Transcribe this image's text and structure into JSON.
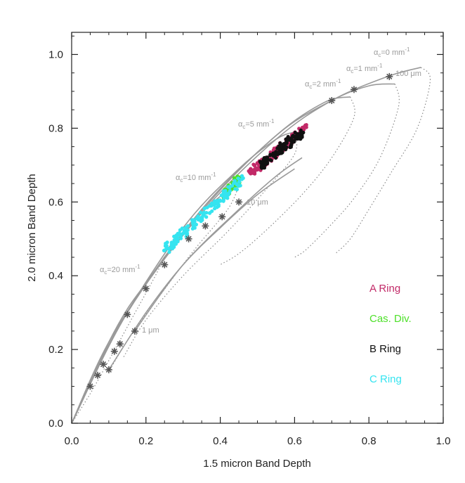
{
  "chart_data": {
    "type": "scatter",
    "title": "",
    "xlabel": "1.5 micron Band Depth",
    "ylabel": "2.0 micron Band Depth",
    "xlim": [
      0.0,
      1.0
    ],
    "ylim": [
      0.0,
      1.06
    ],
    "x_ticks": [
      "0.0",
      "0.2",
      "0.4",
      "0.6",
      "0.8",
      "1.0"
    ],
    "y_ticks": [
      "0.0",
      "0.2",
      "0.4",
      "0.6",
      "0.8",
      "1.0"
    ],
    "grain_size_markers": [
      {
        "x": 0.05,
        "y": 0.1
      },
      {
        "x": 0.07,
        "y": 0.13
      },
      {
        "x": 0.085,
        "y": 0.16
      },
      {
        "x": 0.1,
        "y": 0.145
      },
      {
        "x": 0.115,
        "y": 0.195
      },
      {
        "x": 0.13,
        "y": 0.215
      },
      {
        "x": 0.15,
        "y": 0.295
      },
      {
        "x": 0.17,
        "y": 0.25
      },
      {
        "x": 0.2,
        "y": 0.365
      },
      {
        "x": 0.25,
        "y": 0.43
      },
      {
        "x": 0.315,
        "y": 0.5
      },
      {
        "x": 0.36,
        "y": 0.535
      },
      {
        "x": 0.405,
        "y": 0.56
      },
      {
        "x": 0.45,
        "y": 0.6
      },
      {
        "x": 0.7,
        "y": 0.875
      },
      {
        "x": 0.76,
        "y": 0.905
      },
      {
        "x": 0.855,
        "y": 0.94
      }
    ],
    "model_curves": [
      {
        "name": "alpha_c=0",
        "style": "solid",
        "points": [
          [
            0,
            0
          ],
          [
            0.15,
            0.3
          ],
          [
            0.35,
            0.57
          ],
          [
            0.55,
            0.77
          ],
          [
            0.7,
            0.875
          ],
          [
            0.85,
            0.94
          ],
          [
            0.94,
            0.965
          ]
        ]
      },
      {
        "name": "alpha_c=0",
        "style": "dotted",
        "points": [
          [
            0.94,
            0.965
          ],
          [
            0.965,
            0.93
          ],
          [
            0.93,
            0.8
          ],
          [
            0.86,
            0.68
          ],
          [
            0.8,
            0.58
          ],
          [
            0.75,
            0.5
          ],
          [
            0.71,
            0.46
          ]
        ]
      },
      {
        "name": "alpha_c=1",
        "style": "solid",
        "points": [
          [
            0,
            0
          ],
          [
            0.15,
            0.3
          ],
          [
            0.35,
            0.575
          ],
          [
            0.55,
            0.78
          ],
          [
            0.7,
            0.875
          ],
          [
            0.8,
            0.915
          ],
          [
            0.87,
            0.92
          ]
        ]
      },
      {
        "name": "alpha_c=1",
        "style": "dotted",
        "points": [
          [
            0.87,
            0.92
          ],
          [
            0.88,
            0.86
          ],
          [
            0.83,
            0.72
          ],
          [
            0.76,
            0.61
          ],
          [
            0.69,
            0.53
          ],
          [
            0.63,
            0.47
          ],
          [
            0.6,
            0.45
          ]
        ]
      },
      {
        "name": "alpha_c=2",
        "style": "solid",
        "points": [
          [
            0,
            0
          ],
          [
            0.15,
            0.3
          ],
          [
            0.35,
            0.58
          ],
          [
            0.55,
            0.78
          ],
          [
            0.68,
            0.87
          ],
          [
            0.75,
            0.885
          ]
        ]
      },
      {
        "name": "alpha_c=2",
        "style": "dotted",
        "points": [
          [
            0.75,
            0.885
          ],
          [
            0.76,
            0.83
          ],
          [
            0.7,
            0.72
          ],
          [
            0.62,
            0.62
          ],
          [
            0.52,
            0.52
          ],
          [
            0.45,
            0.46
          ],
          [
            0.4,
            0.43
          ]
        ]
      },
      {
        "name": "alpha_c=5",
        "style": "solid",
        "points": [
          [
            0,
            0
          ],
          [
            0.12,
            0.25
          ],
          [
            0.3,
            0.53
          ],
          [
            0.45,
            0.69
          ],
          [
            0.55,
            0.77
          ],
          [
            0.6,
            0.79
          ]
        ]
      },
      {
        "name": "alpha_c=5",
        "style": "dotted",
        "points": [
          [
            0.6,
            0.79
          ],
          [
            0.6,
            0.73
          ],
          [
            0.52,
            0.63
          ],
          [
            0.42,
            0.52
          ],
          [
            0.3,
            0.4
          ],
          [
            0.2,
            0.28
          ],
          [
            0.14,
            0.18
          ]
        ]
      },
      {
        "name": "alpha_c=10",
        "style": "solid",
        "points": [
          [
            0,
            0
          ],
          [
            0.1,
            0.22
          ],
          [
            0.25,
            0.45
          ],
          [
            0.35,
            0.57
          ],
          [
            0.42,
            0.63
          ],
          [
            0.45,
            0.645
          ]
        ]
      },
      {
        "name": "alpha_c=10",
        "style": "dotted",
        "points": [
          [
            0.45,
            0.645
          ],
          [
            0.42,
            0.58
          ],
          [
            0.33,
            0.47
          ],
          [
            0.24,
            0.35
          ],
          [
            0.16,
            0.24
          ],
          [
            0.1,
            0.14
          ]
        ]
      },
      {
        "name": "alpha_c=20",
        "style": "solid",
        "points": [
          [
            0,
            0
          ],
          [
            0.05,
            0.11
          ],
          [
            0.1,
            0.22
          ],
          [
            0.15,
            0.31
          ],
          [
            0.2,
            0.38
          ],
          [
            0.25,
            0.45
          ]
        ]
      },
      {
        "name": "alpha_c=20",
        "style": "dotted",
        "points": [
          [
            0.25,
            0.45
          ],
          [
            0.22,
            0.39
          ],
          [
            0.16,
            0.28
          ],
          [
            0.1,
            0.17
          ],
          [
            0.05,
            0.08
          ],
          [
            0.0,
            0.0
          ]
        ]
      },
      {
        "name": "10um",
        "style": "solid",
        "points": [
          [
            0.1,
            0.145
          ],
          [
            0.2,
            0.3
          ],
          [
            0.3,
            0.43
          ],
          [
            0.4,
            0.53
          ],
          [
            0.5,
            0.62
          ],
          [
            0.6,
            0.69
          ]
        ]
      },
      {
        "name": "100um",
        "style": "solid",
        "points": [
          [
            0.17,
            0.25
          ],
          [
            0.3,
            0.43
          ],
          [
            0.45,
            0.58
          ],
          [
            0.55,
            0.67
          ],
          [
            0.62,
            0.72
          ]
        ]
      }
    ],
    "series": [
      {
        "name": "A Ring",
        "color": "#c22a68",
        "x_range": [
          0.48,
          0.63
        ],
        "y_range": [
          0.68,
          0.8
        ]
      },
      {
        "name": "Cas. Div.",
        "color": "#4ee02a",
        "x_range": [
          0.41,
          0.45
        ],
        "y_range": [
          0.62,
          0.66
        ]
      },
      {
        "name": "B Ring",
        "color": "#111111",
        "x_range": [
          0.51,
          0.62
        ],
        "y_range": [
          0.7,
          0.79
        ]
      },
      {
        "name": "C Ring",
        "color": "#35e4f0",
        "x_range": [
          0.25,
          0.46
        ],
        "y_range": [
          0.47,
          0.66
        ]
      }
    ],
    "annotations": {
      "alpha0_main": "α",
      "alpha0_sub": "c",
      "alpha0_rest": "=0 mm",
      "alpha0_sup": "-1",
      "alpha1_main": "α",
      "alpha1_sub": "c",
      "alpha1_rest": "=1 mm",
      "alpha1_sup": "-1",
      "alpha2_main": "α",
      "alpha2_sub": "c",
      "alpha2_rest": "=2 mm",
      "alpha2_sup": "-1",
      "alpha5_main": "α",
      "alpha5_sub": "c",
      "alpha5_rest": "=5 mm",
      "alpha5_sup": "-1",
      "alpha10_main": "α",
      "alpha10_sub": "c",
      "alpha10_rest": "=10 mm",
      "alpha10_sup": "-1",
      "alpha20_main": "α",
      "alpha20_sub": "c",
      "alpha20_rest": "=20 mm",
      "alpha20_sup": "-1",
      "grain_100": "100 μm",
      "grain_10": "10 μm",
      "grain_1": "1 μm"
    },
    "legend": [
      {
        "label": "A Ring",
        "color": "#c22a68"
      },
      {
        "label": "Cas. Div.",
        "color": "#4ee02a"
      },
      {
        "label": "B Ring",
        "color": "#111111"
      },
      {
        "label": "C Ring",
        "color": "#35e4f0"
      }
    ]
  }
}
